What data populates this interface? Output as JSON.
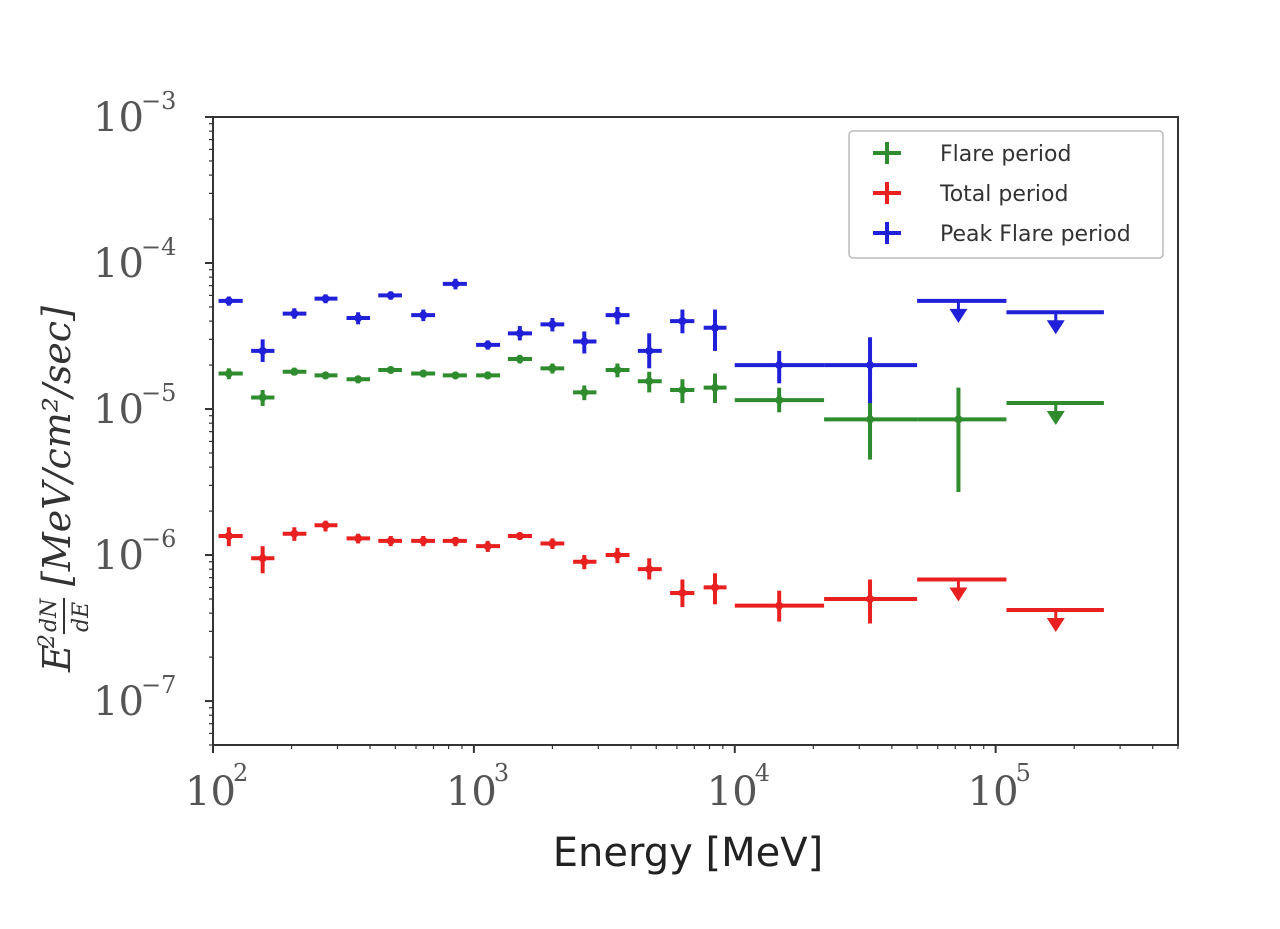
{
  "chart_data": {
    "type": "scatter",
    "title": "",
    "xlabel": "Energy [MeV]",
    "ylabel_parts": {
      "e": "E",
      "sq": "2",
      "num": "dN",
      "den": "dE",
      "unit": "[MeV/cm²/sec]"
    },
    "xscale": "log",
    "yscale": "log",
    "xlim": [
      100,
      500000
    ],
    "ylim": [
      5e-08,
      0.001
    ],
    "x_ticks": [
      {
        "base": "10",
        "exp": "2",
        "value": 100
      },
      {
        "base": "10",
        "exp": "3",
        "value": 1000
      },
      {
        "base": "10",
        "exp": "4",
        "value": 10000
      },
      {
        "base": "10",
        "exp": "5",
        "value": 100000
      }
    ],
    "y_ticks": [
      {
        "base": "10",
        "exp": "−3",
        "value": 0.001
      },
      {
        "base": "10",
        "exp": "−4",
        "value": 0.0001
      },
      {
        "base": "10",
        "exp": "−5",
        "value": 1e-05
      },
      {
        "base": "10",
        "exp": "−6",
        "value": 1e-06
      },
      {
        "base": "10",
        "exp": "−7",
        "value": 1e-07
      }
    ],
    "legend_position": "top-right",
    "series": [
      {
        "name": "Flare period",
        "color": "#2e8b2e",
        "points": [
          {
            "x": 115,
            "y": 1.75e-05,
            "xlo": 105,
            "xhi": 130,
            "ylo": 1.6e-05,
            "yhi": 1.9e-05
          },
          {
            "x": 155,
            "y": 1.2e-05,
            "xlo": 140,
            "xhi": 172,
            "ylo": 1.05e-05,
            "yhi": 1.35e-05
          },
          {
            "x": 205,
            "y": 1.8e-05,
            "xlo": 185,
            "xhi": 228,
            "ylo": 1.7e-05,
            "yhi": 1.92e-05
          },
          {
            "x": 270,
            "y": 1.7e-05,
            "xlo": 245,
            "xhi": 300,
            "ylo": 1.6e-05,
            "yhi": 1.78e-05
          },
          {
            "x": 360,
            "y": 1.6e-05,
            "xlo": 325,
            "xhi": 400,
            "ylo": 1.5e-05,
            "yhi": 1.68e-05
          },
          {
            "x": 480,
            "y": 1.85e-05,
            "xlo": 430,
            "xhi": 530,
            "ylo": 1.75e-05,
            "yhi": 1.92e-05
          },
          {
            "x": 640,
            "y": 1.75e-05,
            "xlo": 575,
            "xhi": 710,
            "ylo": 1.65e-05,
            "yhi": 1.85e-05
          },
          {
            "x": 850,
            "y": 1.7e-05,
            "xlo": 760,
            "xhi": 940,
            "ylo": 1.6e-05,
            "yhi": 1.78e-05
          },
          {
            "x": 1130,
            "y": 1.7e-05,
            "xlo": 1020,
            "xhi": 1260,
            "ylo": 1.6e-05,
            "yhi": 1.8e-05
          },
          {
            "x": 1500,
            "y": 2.2e-05,
            "xlo": 1350,
            "xhi": 1670,
            "ylo": 2.05e-05,
            "yhi": 2.35e-05
          },
          {
            "x": 2000,
            "y": 1.9e-05,
            "xlo": 1800,
            "xhi": 2220,
            "ylo": 1.75e-05,
            "yhi": 2.05e-05
          },
          {
            "x": 2650,
            "y": 1.3e-05,
            "xlo": 2400,
            "xhi": 2950,
            "ylo": 1.15e-05,
            "yhi": 1.45e-05
          },
          {
            "x": 3550,
            "y": 1.85e-05,
            "xlo": 3200,
            "xhi": 3950,
            "ylo": 1.65e-05,
            "yhi": 2.05e-05
          },
          {
            "x": 4700,
            "y": 1.55e-05,
            "xlo": 4250,
            "xhi": 5250,
            "ylo": 1.3e-05,
            "yhi": 1.8e-05
          },
          {
            "x": 6300,
            "y": 1.35e-05,
            "xlo": 5650,
            "xhi": 7000,
            "ylo": 1.1e-05,
            "yhi": 1.6e-05
          },
          {
            "x": 8400,
            "y": 1.4e-05,
            "xlo": 7600,
            "xhi": 9300,
            "ylo": 1.1e-05,
            "yhi": 1.75e-05
          },
          {
            "x": 14800,
            "y": 1.15e-05,
            "xlo": 10000,
            "xhi": 22000,
            "ylo": 9.5e-06,
            "yhi": 1.4e-05
          },
          {
            "x": 33000,
            "y": 8.5e-06,
            "xlo": 22000,
            "xhi": 50000,
            "ylo": 4.5e-06,
            "yhi": 1.25e-05
          },
          {
            "x": 72000,
            "y": 8.5e-06,
            "xlo": 50000,
            "xhi": 110000,
            "ylo": 2.7e-06,
            "yhi": 1.4e-05
          },
          {
            "x": 170000,
            "y": 1.1e-05,
            "xlo": 110000,
            "xhi": 260000,
            "upper_limit": true
          }
        ]
      },
      {
        "name": "Total period",
        "color": "#e82020",
        "points": [
          {
            "x": 115,
            "y": 1.35e-06,
            "xlo": 105,
            "xhi": 130,
            "ylo": 1.15e-06,
            "yhi": 1.55e-06
          },
          {
            "x": 155,
            "y": 9.5e-07,
            "xlo": 140,
            "xhi": 172,
            "ylo": 7.5e-07,
            "yhi": 1.15e-06
          },
          {
            "x": 205,
            "y": 1.4e-06,
            "xlo": 185,
            "xhi": 228,
            "ylo": 1.25e-06,
            "yhi": 1.55e-06
          },
          {
            "x": 270,
            "y": 1.6e-06,
            "xlo": 245,
            "xhi": 300,
            "ylo": 1.45e-06,
            "yhi": 1.72e-06
          },
          {
            "x": 360,
            "y": 1.3e-06,
            "xlo": 325,
            "xhi": 400,
            "ylo": 1.2e-06,
            "yhi": 1.4e-06
          },
          {
            "x": 480,
            "y": 1.25e-06,
            "xlo": 430,
            "xhi": 530,
            "ylo": 1.15e-06,
            "yhi": 1.35e-06
          },
          {
            "x": 640,
            "y": 1.25e-06,
            "xlo": 575,
            "xhi": 710,
            "ylo": 1.15e-06,
            "yhi": 1.35e-06
          },
          {
            "x": 850,
            "y": 1.25e-06,
            "xlo": 760,
            "xhi": 940,
            "ylo": 1.15e-06,
            "yhi": 1.33e-06
          },
          {
            "x": 1130,
            "y": 1.15e-06,
            "xlo": 1020,
            "xhi": 1260,
            "ylo": 1.05e-06,
            "yhi": 1.25e-06
          },
          {
            "x": 1500,
            "y": 1.35e-06,
            "xlo": 1350,
            "xhi": 1670,
            "ylo": 1.27e-06,
            "yhi": 1.43e-06
          },
          {
            "x": 2000,
            "y": 1.2e-06,
            "xlo": 1800,
            "xhi": 2220,
            "ylo": 1.1e-06,
            "yhi": 1.3e-06
          },
          {
            "x": 2650,
            "y": 9e-07,
            "xlo": 2400,
            "xhi": 2950,
            "ylo": 8e-07,
            "yhi": 1e-06
          },
          {
            "x": 3550,
            "y": 1e-06,
            "xlo": 3200,
            "xhi": 3950,
            "ylo": 8.8e-07,
            "yhi": 1.12e-06
          },
          {
            "x": 4700,
            "y": 8e-07,
            "xlo": 4250,
            "xhi": 5250,
            "ylo": 6.8e-07,
            "yhi": 9.5e-07
          },
          {
            "x": 6300,
            "y": 5.5e-07,
            "xlo": 5650,
            "xhi": 7000,
            "ylo": 4.4e-07,
            "yhi": 6.8e-07
          },
          {
            "x": 8400,
            "y": 6e-07,
            "xlo": 7600,
            "xhi": 9300,
            "ylo": 4.6e-07,
            "yhi": 7.5e-07
          },
          {
            "x": 14800,
            "y": 4.5e-07,
            "xlo": 10000,
            "xhi": 22000,
            "ylo": 3.5e-07,
            "yhi": 5.7e-07
          },
          {
            "x": 33000,
            "y": 5e-07,
            "xlo": 22000,
            "xhi": 50000,
            "ylo": 3.4e-07,
            "yhi": 6.8e-07
          },
          {
            "x": 72000,
            "y": 6.8e-07,
            "xlo": 50000,
            "xhi": 110000,
            "upper_limit": true
          },
          {
            "x": 170000,
            "y": 4.2e-07,
            "xlo": 110000,
            "xhi": 260000,
            "upper_limit": true
          }
        ]
      },
      {
        "name": "Peak Flare period",
        "color": "#2020d8",
        "points": [
          {
            "x": 115,
            "y": 5.5e-05,
            "xlo": 105,
            "xhi": 130,
            "ylo": 5.1e-05,
            "yhi": 5.9e-05
          },
          {
            "x": 155,
            "y": 2.5e-05,
            "xlo": 140,
            "xhi": 172,
            "ylo": 2.1e-05,
            "yhi": 3e-05
          },
          {
            "x": 205,
            "y": 4.5e-05,
            "xlo": 185,
            "xhi": 228,
            "ylo": 4.15e-05,
            "yhi": 4.9e-05
          },
          {
            "x": 270,
            "y": 5.7e-05,
            "xlo": 245,
            "xhi": 300,
            "ylo": 5.3e-05,
            "yhi": 6.1e-05
          },
          {
            "x": 360,
            "y": 4.2e-05,
            "xlo": 325,
            "xhi": 400,
            "ylo": 3.8e-05,
            "yhi": 4.6e-05
          },
          {
            "x": 480,
            "y": 6e-05,
            "xlo": 430,
            "xhi": 530,
            "ylo": 5.6e-05,
            "yhi": 6.4e-05
          },
          {
            "x": 640,
            "y": 4.4e-05,
            "xlo": 575,
            "xhi": 710,
            "ylo": 4e-05,
            "yhi": 4.8e-05
          },
          {
            "x": 850,
            "y": 7.2e-05,
            "xlo": 760,
            "xhi": 940,
            "ylo": 6.6e-05,
            "yhi": 7.8e-05
          },
          {
            "x": 1130,
            "y": 2.75e-05,
            "xlo": 1020,
            "xhi": 1260,
            "ylo": 2.55e-05,
            "yhi": 2.95e-05
          },
          {
            "x": 1500,
            "y": 3.3e-05,
            "xlo": 1350,
            "xhi": 1670,
            "ylo": 2.95e-05,
            "yhi": 3.7e-05
          },
          {
            "x": 2000,
            "y": 3.8e-05,
            "xlo": 1800,
            "xhi": 2220,
            "ylo": 3.4e-05,
            "yhi": 4.2e-05
          },
          {
            "x": 2650,
            "y": 2.9e-05,
            "xlo": 2400,
            "xhi": 2950,
            "ylo": 2.4e-05,
            "yhi": 3.4e-05
          },
          {
            "x": 3550,
            "y": 4.4e-05,
            "xlo": 3200,
            "xhi": 3950,
            "ylo": 3.8e-05,
            "yhi": 5e-05
          },
          {
            "x": 4700,
            "y": 2.5e-05,
            "xlo": 4250,
            "xhi": 5250,
            "ylo": 1.9e-05,
            "yhi": 3.3e-05
          },
          {
            "x": 6300,
            "y": 4e-05,
            "xlo": 5650,
            "xhi": 7000,
            "ylo": 3.3e-05,
            "yhi": 4.8e-05
          },
          {
            "x": 8400,
            "y": 3.6e-05,
            "xlo": 7600,
            "xhi": 9300,
            "ylo": 2.5e-05,
            "yhi": 4.8e-05
          },
          {
            "x": 14800,
            "y": 2e-05,
            "xlo": 10000,
            "xhi": 22000,
            "ylo": 1.5e-05,
            "yhi": 2.5e-05
          },
          {
            "x": 33000,
            "y": 2e-05,
            "xlo": 22000,
            "xhi": 50000,
            "ylo": 1.1e-05,
            "yhi": 3.1e-05
          },
          {
            "x": 72000,
            "y": 5.5e-05,
            "xlo": 50000,
            "xhi": 110000,
            "upper_limit": true
          },
          {
            "x": 170000,
            "y": 4.6e-05,
            "xlo": 110000,
            "xhi": 260000,
            "upper_limit": true
          }
        ]
      }
    ]
  }
}
